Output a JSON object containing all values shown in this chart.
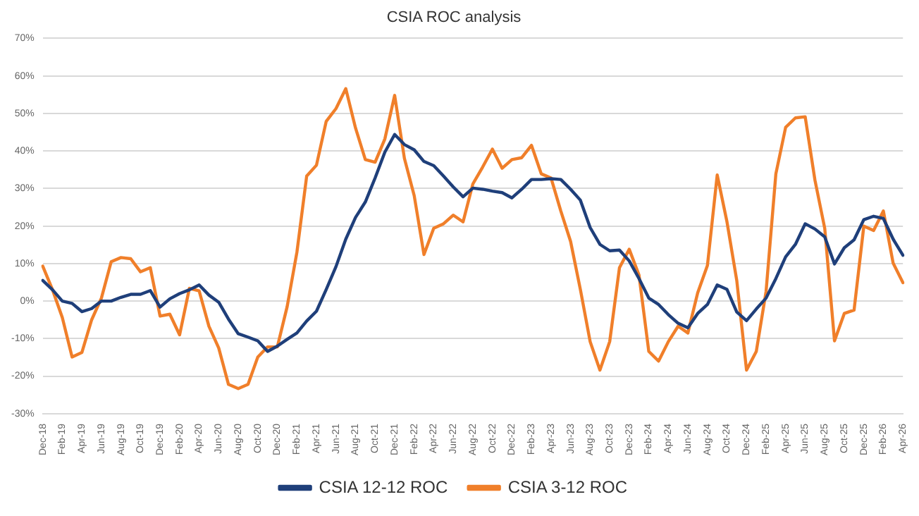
{
  "chart_data": {
    "type": "line",
    "title": "CSIA ROC analysis",
    "categories": [
      "Dec-18",
      null,
      "Feb-19",
      null,
      "Apr-19",
      null,
      "Jun-19",
      null,
      "Aug-19",
      null,
      "Oct-19",
      null,
      "Dec-19",
      null,
      "Feb-20",
      null,
      "Apr-20",
      null,
      "Jun-20",
      null,
      "Aug-20",
      null,
      "Oct-20",
      null,
      "Dec-20",
      null,
      "Feb-21",
      null,
      "Apr-21",
      null,
      "Jun-21",
      null,
      "Aug-21",
      null,
      "Oct-21",
      null,
      "Dec-21",
      null,
      "Feb-22",
      null,
      "Apr-22",
      null,
      "Jun-22",
      null,
      "Aug-22",
      null,
      "Oct-22",
      null,
      "Dec-22",
      null,
      "Feb-23",
      null,
      "Apr-23",
      null,
      "Jun-23",
      null,
      "Aug-23",
      null,
      "Oct-23",
      null,
      "Dec-23",
      null,
      "Feb-24",
      null,
      "Apr-24",
      null,
      "Jun-24",
      null,
      "Aug-24",
      null,
      "Oct-24",
      null,
      "Dec-24",
      null,
      "Feb-25",
      null,
      "Apr-25",
      null,
      "Jun-25",
      null,
      "Aug-25",
      null,
      "Oct-25",
      null,
      "Dec-25",
      null,
      "Feb-26",
      null,
      "Apr-26"
    ],
    "series": [
      {
        "name": "CSIA 12-12 ROC",
        "color": "#1f3f7a",
        "values": [
          5.5,
          3,
          0,
          -0.6,
          -2.8,
          -2,
          0,
          0,
          1,
          1.8,
          1.8,
          2.8,
          -1.6,
          0.6,
          2,
          3,
          4.3,
          1.6,
          -0.3,
          -4.8,
          -8.7,
          -9.6,
          -10.6,
          -13.4,
          -12,
          -10.2,
          -8.5,
          -5.3,
          -2.7,
          3.1,
          9.2,
          16.5,
          22.3,
          26.4,
          32.8,
          39.7,
          44.4,
          41.7,
          40.3,
          37.2,
          36.1,
          33.3,
          30.4,
          27.8,
          30.1,
          29.8,
          29.3,
          28.9,
          27.5,
          29.8,
          32.4,
          32.4,
          32.6,
          32.4,
          29.8,
          26.9,
          19.6,
          15.1,
          13.4,
          13.6,
          10.7,
          6,
          0.8,
          -0.9,
          -3.6,
          -5.9,
          -7.1,
          -3.3,
          -0.9,
          4.3,
          3.1,
          -2.9,
          -5.2,
          -2.1,
          0.8,
          6,
          11.8,
          15.1,
          20.6,
          19.2,
          17.1,
          9.9,
          14.2,
          16.3,
          21.7,
          22.6,
          22,
          16.5,
          12.2
        ]
      },
      {
        "name": "CSIA 3-12 ROC",
        "color": "#f07f2a",
        "values": [
          9.3,
          3,
          -4.4,
          -14.9,
          -13.7,
          -5,
          0.8,
          10.5,
          11.6,
          11.3,
          7.8,
          8.9,
          -4,
          -3.5,
          -9,
          3.4,
          2.7,
          -6.7,
          -12.5,
          -22.2,
          -23.3,
          -22.2,
          -14.9,
          -12.2,
          -12.2,
          -1.5,
          13,
          33.3,
          36.2,
          47.9,
          51.3,
          56.6,
          46.1,
          37.7,
          37,
          43.2,
          54.8,
          38,
          28.1,
          12.4,
          19.4,
          20.6,
          22.9,
          21.1,
          31.2,
          35.7,
          40.5,
          35.4,
          37.7,
          38.2,
          41.5,
          33.9,
          32.8,
          24,
          15.9,
          3.1,
          -10.8,
          -18.4,
          -10.8,
          8.9,
          13.8,
          6.9,
          -13.4,
          -16,
          -10.8,
          -6.7,
          -8.5,
          2.2,
          9.5,
          33.6,
          21.1,
          5.5,
          -18.4,
          -13.4,
          2.6,
          33.9,
          46.3,
          48.8,
          49.1,
          32.2,
          19.4,
          -10.6,
          -3.3,
          -2.4,
          20,
          18.8,
          24,
          10.1,
          4.9
        ]
      }
    ],
    "ylim": [
      -30,
      70
    ],
    "yticks": [
      {
        "value": -30,
        "label": "-30%"
      },
      {
        "value": -20,
        "label": "-20%"
      },
      {
        "value": -10,
        "label": "-10%"
      },
      {
        "value": 0,
        "label": "0%"
      },
      {
        "value": 10,
        "label": "10%"
      },
      {
        "value": 20,
        "label": "20%"
      },
      {
        "value": 30,
        "label": "30%"
      },
      {
        "value": 40,
        "label": "40%"
      },
      {
        "value": 50,
        "label": "50%"
      },
      {
        "value": 60,
        "label": "60%"
      },
      {
        "value": 70,
        "label": "70%"
      }
    ],
    "grid": "y",
    "legend": "bottom",
    "marker": "none",
    "line_style": "solid"
  }
}
